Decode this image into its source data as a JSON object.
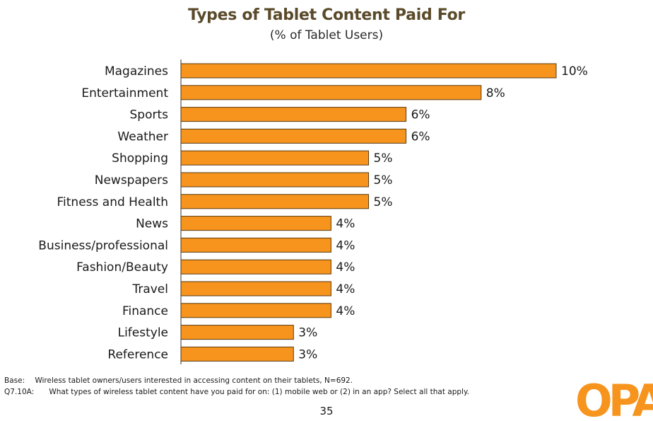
{
  "chart_data": {
    "type": "bar",
    "orientation": "horizontal",
    "title": "Types of Tablet Content Paid For",
    "subtitle": "(% of Tablet Users)",
    "categories": [
      "Magazines",
      "Entertainment",
      "Sports",
      "Weather",
      "Shopping",
      "Newspapers",
      "Fitness and Health",
      "News",
      "Business/professional",
      "Fashion/Beauty",
      "Travel",
      "Finance",
      "Lifestyle",
      "Reference"
    ],
    "values": [
      10,
      8,
      6,
      6,
      5,
      5,
      5,
      4,
      4,
      4,
      4,
      4,
      3,
      3
    ],
    "value_labels": [
      "10%",
      "8%",
      "6%",
      "6%",
      "5%",
      "5%",
      "5%",
      "4%",
      "4%",
      "4%",
      "4%",
      "4%",
      "3%",
      "3%"
    ],
    "xlim": [
      0,
      10
    ],
    "grid": false,
    "bar_color": "#f7941d",
    "bar_edge_color": "#5a3a10"
  },
  "footnotes": {
    "base_tag": "Base:",
    "base_text": "Wireless tablet owners/users interested in accessing content on their tablets, N=692.",
    "question_tag": "Q7.10A:",
    "question_text": "What types of wireless tablet content have you paid for on: (1) mobile web or (2) in an app? Select all that apply."
  },
  "page_number": "35",
  "logo": {
    "text": "OPA",
    "color": "#f7941d"
  }
}
